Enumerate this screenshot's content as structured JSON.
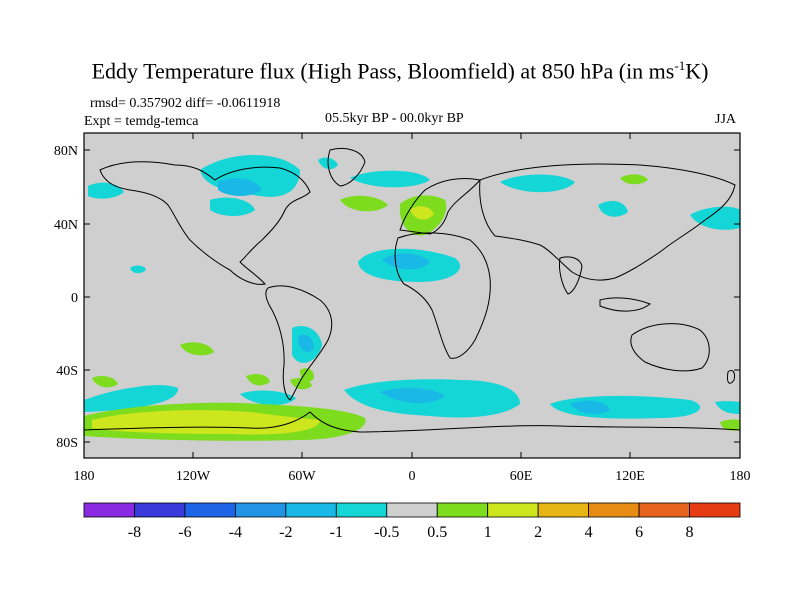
{
  "title": {
    "main": "Eddy Temperature flux (High Pass, Bloomfield) at 850 hPa (in ms",
    "sup": "-1",
    "tail": "K)"
  },
  "stats": "rmsd= 0.357902 diff= -0.0611918",
  "experiment": "Expt = temdg-temca",
  "period": "05.5kyr BP - 00.0kyr BP",
  "season": "JJA",
  "lat_labels": [
    "80N",
    "40N",
    "0",
    "40S",
    "80S"
  ],
  "lon_labels": [
    "180",
    "120W",
    "60W",
    "0",
    "60E",
    "120E",
    "180"
  ],
  "legend": {
    "labels": [
      "-8",
      "-6",
      "-4",
      "-2",
      "-1",
      "-0.5",
      "0.5",
      "1",
      "2",
      "4",
      "6",
      "8"
    ],
    "colors": [
      "#8a2be2",
      "#3a3adb",
      "#1e64e6",
      "#2194e6",
      "#19b8e6",
      "#14d6d6",
      "#cfcfcf",
      "#7ddc1e",
      "#cde61e",
      "#e6b414",
      "#e68c14",
      "#e6641e",
      "#e63c14"
    ]
  },
  "colors": {
    "background_field": "#cfcfcf",
    "neg_weak": "#14d6d6",
    "neg_med": "#19b8e6",
    "neg_strong": "#2194e6",
    "pos_weak": "#7ddc1e",
    "pos_med": "#cde61e"
  }
}
